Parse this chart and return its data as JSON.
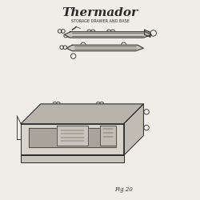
{
  "title": "Thermador",
  "subtitle": "STORAGE DRAWER AND BASE",
  "fig_label": "Fig 20",
  "bg_color": "#f0ede8",
  "line_color": "#2a2a2a",
  "circle_color": "#2a2a2a"
}
